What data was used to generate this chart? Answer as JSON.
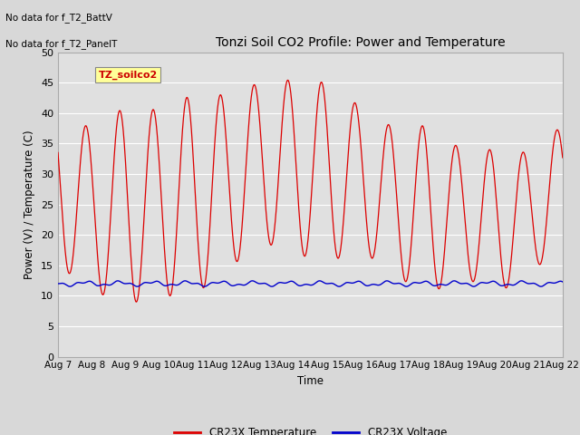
{
  "title": "Tonzi Soil CO2 Profile: Power and Temperature",
  "ylabel": "Power (V) / Temperature (C)",
  "xlabel": "Time",
  "top_left_text_line1": "No data for f_T2_BattV",
  "top_left_text_line2": "No data for f_T2_PanelT",
  "legend_box_label": "TZ_soilco2",
  "ylim": [
    0,
    50
  ],
  "yticks": [
    0,
    5,
    10,
    15,
    20,
    25,
    30,
    35,
    40,
    45,
    50
  ],
  "xtick_labels": [
    "Aug 7",
    "Aug 8",
    "Aug 9",
    "Aug 10",
    "Aug 11",
    "Aug 12",
    "Aug 13",
    "Aug 14",
    "Aug 15",
    "Aug 16",
    "Aug 17",
    "Aug 18",
    "Aug 19",
    "Aug 20",
    "Aug 21",
    "Aug 22"
  ],
  "background_color": "#d8d8d8",
  "plot_bg_color": "#e0e0e0",
  "grid_color": "#ffffff",
  "temp_color": "#dd0000",
  "voltage_color": "#0000cc",
  "legend_temp": "CR23X Temperature",
  "legend_voltage": "CR23X Voltage",
  "day_peaks": [
    40,
    37.5,
    41,
    40.5,
    43,
    43,
    45,
    45.5,
    45,
    41,
    37.5,
    38,
    34,
    34,
    33.5,
    38
  ],
  "day_mins": [
    15,
    11,
    8.5,
    10,
    10,
    14,
    19,
    17,
    15.5,
    17.5,
    13.5,
    10,
    13.5,
    10,
    14,
    17.5
  ],
  "voltage_mean": 12.0,
  "voltage_amplitude": 0.6,
  "num_days": 15,
  "figwidth": 6.4,
  "figheight": 4.8,
  "dpi": 100
}
